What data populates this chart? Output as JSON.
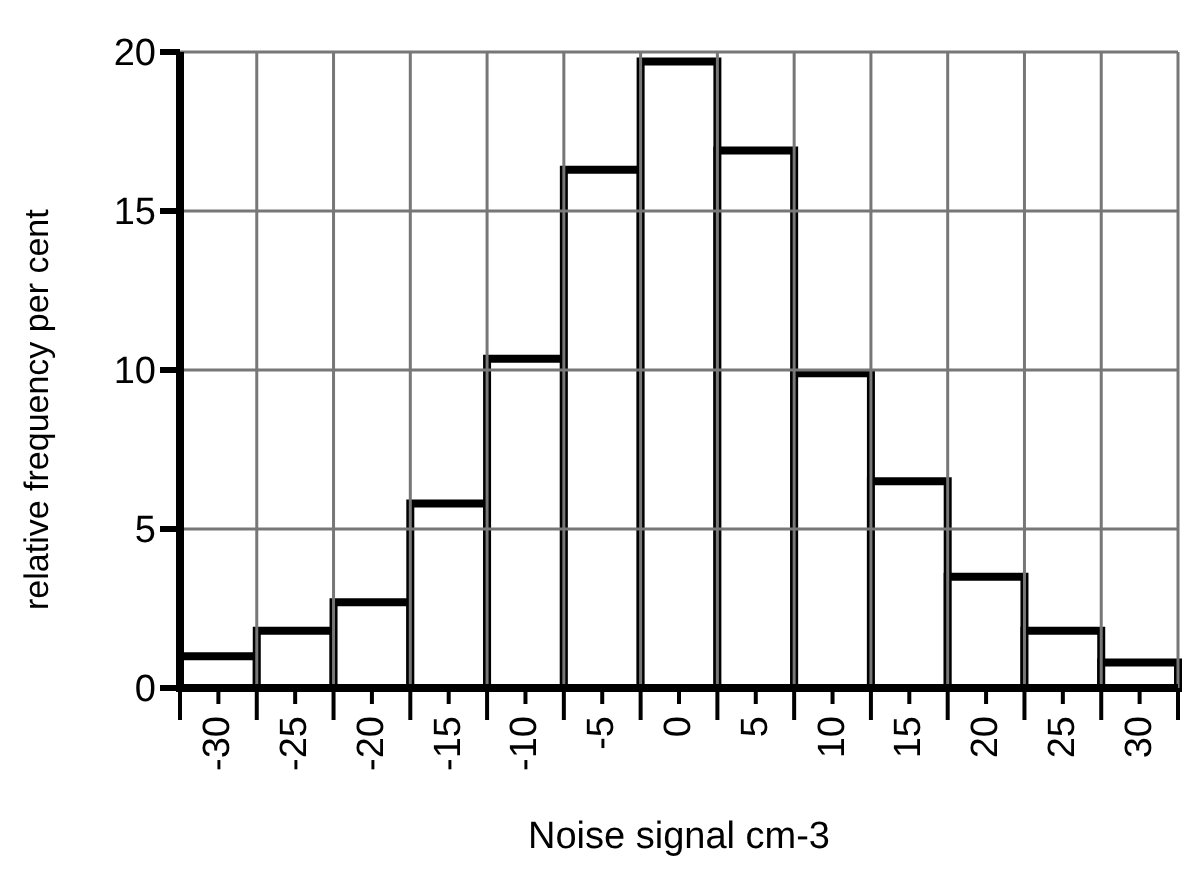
{
  "chart_data": {
    "type": "histogram",
    "xlabel": "Noise signal cm-3",
    "ylabel": "relative frequency per cent",
    "bins": [
      -32.5,
      -27.5,
      -22.5,
      -17.5,
      -12.5,
      -7.5,
      -2.5,
      2.5,
      7.5,
      12.5,
      17.5,
      22.5,
      27.5,
      32.5
    ],
    "values": [
      1.0,
      1.8,
      2.7,
      5.8,
      10.35,
      16.3,
      19.7,
      16.9,
      9.9,
      6.5,
      3.5,
      1.8,
      0.8
    ],
    "color": "#ffffff",
    "xlim": [
      -32.5,
      32.5
    ],
    "xticks": [
      {
        "value": -32.5,
        "label": null
      },
      -30,
      {
        "value": -27.5,
        "label": null
      },
      -25,
      {
        "value": -22.5,
        "label": null
      },
      -20,
      {
        "value": -17.5,
        "label": null
      },
      -15,
      {
        "value": -12.5,
        "label": null
      },
      -10,
      {
        "value": -7.5,
        "label": null
      },
      -5,
      {
        "value": -2.5,
        "label": null
      },
      0,
      {
        "value": 2.5,
        "label": null
      },
      5,
      {
        "value": 7.5,
        "label": null
      },
      10,
      {
        "value": 12.5,
        "label": null
      },
      15,
      {
        "value": 17.5,
        "label": null
      },
      20,
      {
        "value": 22.5,
        "label": null
      },
      25,
      {
        "value": 27.5,
        "label": null
      },
      30,
      {
        "value": 32.5,
        "label": null
      }
    ],
    "ylim": [
      0,
      20
    ],
    "yticks": [
      0,
      5,
      10,
      15,
      20
    ],
    "grid": true
  }
}
